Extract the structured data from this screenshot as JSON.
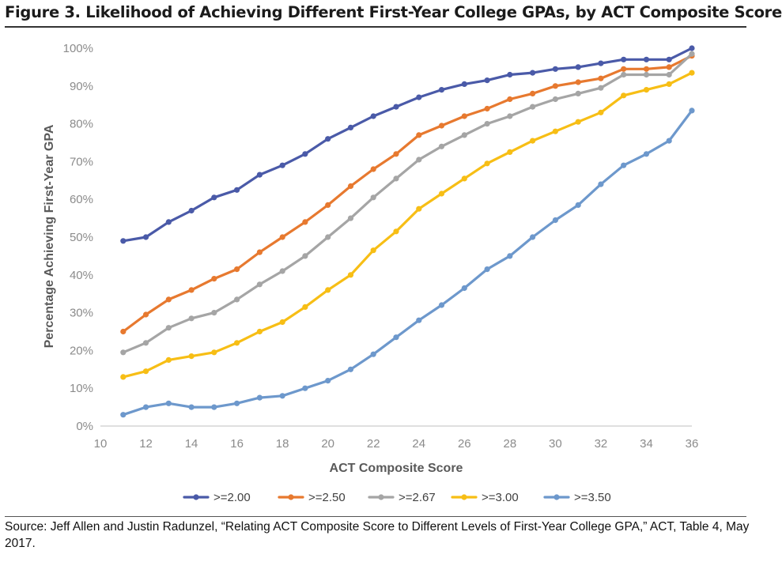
{
  "figure": {
    "title": "Figure 3. Likelihood of Achieving Different First-Year College GPAs, by ACT Composite Score",
    "source": "Source: Jeff Allen and Justin Radunzel, “Relating ACT Composite Score to Different Levels of First-Year College GPA,” ACT, Table 4, May 2017."
  },
  "chart_data": {
    "type": "line",
    "title": "Likelihood of Achieving Different First-Year College GPAs, by ACT Composite Score",
    "xlabel": "ACT Composite Score",
    "ylabel": "Percentage Achieving First-Year GPA",
    "xlim": [
      10,
      36
    ],
    "ylim": [
      0,
      100
    ],
    "x_ticks": [
      10,
      12,
      14,
      16,
      18,
      20,
      22,
      24,
      26,
      28,
      30,
      32,
      34,
      36
    ],
    "y_ticks": [
      0,
      10,
      20,
      30,
      40,
      50,
      60,
      70,
      80,
      90,
      100
    ],
    "y_tick_labels": [
      "0%",
      "10%",
      "20%",
      "30%",
      "40%",
      "50%",
      "60%",
      "70%",
      "80%",
      "90%",
      "100%"
    ],
    "grid": false,
    "legend_position": "bottom",
    "x": [
      11,
      12,
      13,
      14,
      15,
      16,
      17,
      18,
      19,
      20,
      21,
      22,
      23,
      24,
      25,
      26,
      27,
      28,
      29,
      30,
      31,
      32,
      33,
      34,
      35,
      36
    ],
    "series": [
      {
        "name": ">=2.00",
        "color": "#4a5aa8",
        "values": [
          49,
          50,
          54,
          57,
          60.5,
          62.5,
          66.5,
          69,
          72,
          76,
          79,
          82,
          84.5,
          87,
          89,
          90.5,
          91.5,
          93,
          93.5,
          94.5,
          95,
          96,
          97,
          97,
          97,
          100
        ]
      },
      {
        "name": ">=2.50",
        "color": "#e7792f",
        "values": [
          25,
          29.5,
          33.5,
          36,
          39,
          41.5,
          46,
          50,
          54,
          58.5,
          63.5,
          68,
          72,
          77,
          79.5,
          82,
          84,
          86.5,
          88,
          90,
          91,
          92,
          94.5,
          94.5,
          95,
          98
        ]
      },
      {
        "name": ">=2.67",
        "color": "#a5a5a5",
        "values": [
          19.5,
          22,
          26,
          28.5,
          30,
          33.5,
          37.5,
          41,
          45,
          50,
          55,
          60.5,
          65.5,
          70.5,
          74,
          77,
          80,
          82,
          84.5,
          86.5,
          88,
          89.5,
          93,
          93,
          93,
          98.5
        ]
      },
      {
        "name": ">=3.00",
        "color": "#f7be15",
        "values": [
          13,
          14.5,
          17.5,
          18.5,
          19.5,
          22,
          25,
          27.5,
          31.5,
          36,
          40,
          46.5,
          51.5,
          57.5,
          61.5,
          65.5,
          69.5,
          72.5,
          75.5,
          78,
          80.5,
          83,
          87.5,
          89,
          90.5,
          93.5
        ]
      },
      {
        "name": ">=3.50",
        "color": "#6d98cc",
        "values": [
          3,
          5,
          6,
          5,
          5,
          6,
          7.5,
          8,
          10,
          12,
          15,
          19,
          23.5,
          28,
          32,
          36.5,
          41.5,
          45,
          50,
          54.5,
          58.5,
          64,
          69,
          72,
          75.5,
          83.5
        ]
      }
    ]
  }
}
